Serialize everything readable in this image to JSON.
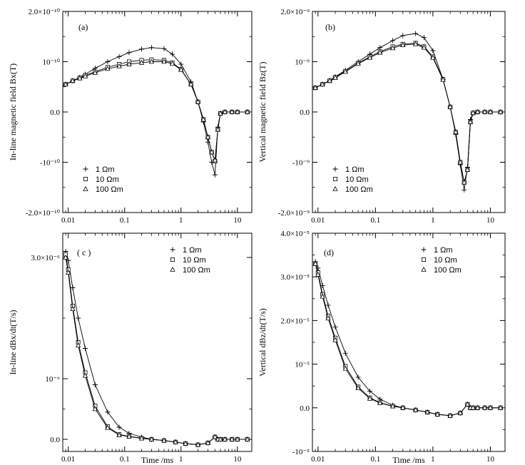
{
  "chart_data": [
    {
      "panel": "(a)",
      "type": "line",
      "x_scale": "log",
      "xlim": [
        0.008,
        18
      ],
      "ylim": [
        -2e-10,
        2e-10
      ],
      "xticks": [
        0.01,
        0.1,
        1,
        10
      ],
      "xtick_labels": [
        "0.01",
        "0.1",
        "1",
        "10"
      ],
      "yticks": [
        -2e-10,
        -1e-10,
        0,
        1e-10,
        2e-10
      ],
      "ytick_labels": [
        "-2.0×10⁻¹⁰",
        "-10⁻¹⁰",
        "0.0",
        "10⁻¹⁰",
        "2.0×10⁻¹⁰"
      ],
      "ylabel": "In-line magnetic field Bx(T)",
      "xlabel": "",
      "legend": [
        "1 Ωm",
        "10 Ωm",
        "100 Ωm"
      ],
      "legend_position": "lower-left",
      "x": [
        0.009,
        0.012,
        0.016,
        0.02,
        0.03,
        0.05,
        0.08,
        0.12,
        0.2,
        0.3,
        0.5,
        0.7,
        1.0,
        1.5,
        2.0,
        2.5,
        3.0,
        3.5,
        4.0,
        4.5,
        5.0,
        6.0,
        8.0,
        10.0,
        15.0
      ],
      "series": [
        {
          "name": "1 Ωm",
          "marker": "plus",
          "values": [
            5.5e-11,
            6.2e-11,
            6.9e-11,
            7.5e-11,
            8.7e-11,
            1e-10,
            1.1e-10,
            1.18e-10,
            1.25e-10,
            1.28e-10,
            1.26e-10,
            1.15e-10,
            9.5e-11,
            6e-11,
            2e-11,
            -2e-11,
            -6e-11,
            -1e-10,
            -1.25e-10,
            -3e-11,
            -2e-12,
            0,
            0,
            0,
            0
          ]
        },
        {
          "name": "10 Ωm",
          "marker": "square",
          "values": [
            5.5e-11,
            6.2e-11,
            6.8e-11,
            7.3e-11,
            8e-11,
            8.9e-11,
            9.5e-11,
            1e-10,
            1.03e-10,
            1.04e-10,
            1.03e-10,
            9.8e-11,
            8.5e-11,
            5.5e-11,
            2e-11,
            -1.5e-11,
            -5e-11,
            -8e-11,
            -9.8e-11,
            -3.5e-11,
            -3e-12,
            0,
            0,
            0,
            0
          ]
        },
        {
          "name": "100 Ωm",
          "marker": "triangle",
          "values": [
            5.5e-11,
            6.2e-11,
            6.7e-11,
            7.1e-11,
            7.8e-11,
            8.6e-11,
            9.1e-11,
            9.5e-11,
            9.8e-11,
            1e-10,
            1e-10,
            9.6e-11,
            8.4e-11,
            5.5e-11,
            2e-11,
            -1.5e-11,
            -5e-11,
            -8e-11,
            -9.6e-11,
            -3.5e-11,
            -3e-12,
            0,
            0,
            0,
            0
          ]
        }
      ]
    },
    {
      "panel": "(b)",
      "type": "line",
      "x_scale": "log",
      "xlim": [
        0.008,
        18
      ],
      "ylim": [
        -2e-09,
        2e-09
      ],
      "xticks": [
        0.01,
        0.1,
        1,
        10
      ],
      "xtick_labels": [
        "0.01",
        "0.1",
        "1",
        "10"
      ],
      "yticks": [
        -2e-09,
        -1e-09,
        0,
        1e-09,
        2e-09
      ],
      "ytick_labels": [
        "-2.0×10⁻⁹",
        "-10⁻⁹",
        "0.0",
        "10⁻⁹",
        "2.0×10⁻⁹"
      ],
      "ylabel": "Vertical magnetic field Bz(T)",
      "xlabel": "",
      "legend": [
        "1 Ωm",
        "10 Ωm",
        "100 Ωm"
      ],
      "legend_position": "lower-left",
      "x": [
        0.009,
        0.012,
        0.016,
        0.02,
        0.03,
        0.05,
        0.08,
        0.12,
        0.2,
        0.3,
        0.5,
        0.7,
        1.0,
        1.5,
        2.0,
        2.5,
        3.0,
        3.5,
        4.0,
        4.5,
        5.0,
        6.0,
        8.0,
        10.0,
        15.0
      ],
      "series": [
        {
          "name": "1 Ωm",
          "marker": "plus",
          "values": [
            4.8e-10,
            5.5e-10,
            6.3e-10,
            7e-10,
            8.3e-10,
            1e-09,
            1.15e-09,
            1.28e-09,
            1.42e-09,
            1.52e-09,
            1.56e-09,
            1.48e-09,
            1.22e-09,
            6.5e-10,
            1e-10,
            -4.5e-10,
            -1.05e-09,
            -1.55e-09,
            -1.1e-09,
            -1.5e-10,
            -2e-11,
            0,
            0,
            0,
            0
          ]
        },
        {
          "name": "10 Ωm",
          "marker": "square",
          "values": [
            4.8e-10,
            5.5e-10,
            6.2e-10,
            6.9e-10,
            8.1e-10,
            9.7e-10,
            1.1e-09,
            1.2e-09,
            1.3e-09,
            1.35e-09,
            1.37e-09,
            1.3e-09,
            1.1e-09,
            6.5e-10,
            1e-10,
            -4e-10,
            -1e-09,
            -1.4e-09,
            -1.15e-09,
            -2e-10,
            -2e-11,
            0,
            0,
            0,
            0
          ]
        },
        {
          "name": "100 Ωm",
          "marker": "triangle",
          "values": [
            4.8e-10,
            5.5e-10,
            6.2e-10,
            6.8e-10,
            8e-10,
            9.6e-10,
            1.08e-09,
            1.18e-09,
            1.27e-09,
            1.33e-09,
            1.35e-09,
            1.28e-09,
            1.08e-09,
            6.4e-10,
            1e-10,
            -4e-10,
            -1e-09,
            -1.4e-09,
            -1.15e-09,
            -2e-10,
            -2e-11,
            0,
            0,
            0,
            0
          ]
        }
      ]
    },
    {
      "panel": "( c )",
      "type": "line",
      "x_scale": "log",
      "xlim": [
        0.008,
        18
      ],
      "ylim": [
        -2e-07,
        3.4e-06
      ],
      "xticks": [
        0.01,
        0.1,
        1,
        10
      ],
      "xtick_labels": [
        "0.01",
        "0.1",
        "1",
        "10"
      ],
      "yticks": [
        0,
        1e-06,
        3e-06
      ],
      "ytick_labels": [
        "0.0",
        "10⁻⁶",
        "3.0×10⁻⁶"
      ],
      "ylabel": "In-line dBx/dt(T/s)",
      "xlabel": "Time /ms",
      "legend": [
        "1 Ωm",
        "10 Ωm",
        "100 Ωm"
      ],
      "legend_position": "top-right",
      "x": [
        0.009,
        0.01,
        0.012,
        0.015,
        0.02,
        0.03,
        0.05,
        0.08,
        0.12,
        0.2,
        0.3,
        0.5,
        0.8,
        1.2,
        2.0,
        3.0,
        4.0,
        4.5,
        5.0,
        6.0,
        8.0,
        10.0,
        15.0
      ],
      "series": [
        {
          "name": "1 Ωm",
          "marker": "plus",
          "values": [
            3.1e-06,
            2.95e-06,
            2.5e-06,
            2e-06,
            1.5e-06,
            9e-07,
            4.5e-07,
            2e-07,
            1e-07,
            3.5e-08,
            0,
            -2e-08,
            -4.5e-08,
            -7e-08,
            -9e-08,
            -6e-08,
            4e-08,
            0,
            0,
            0,
            0,
            0,
            0
          ]
        },
        {
          "name": "10 Ωm",
          "marker": "square",
          "values": [
            3.05e-06,
            2.8e-06,
            2.2e-06,
            1.6e-06,
            1.1e-06,
            5.5e-07,
            2.1e-07,
            8e-08,
            5e-08,
            2e-08,
            0,
            -2e-08,
            -4.5e-08,
            -7e-08,
            -9e-08,
            -6e-08,
            4e-08,
            0,
            0,
            0,
            0,
            0,
            0
          ]
        },
        {
          "name": "100 Ωm",
          "marker": "triangle",
          "values": [
            3e-06,
            2.75e-06,
            2.15e-06,
            1.55e-06,
            1.05e-06,
            5e-07,
            1.9e-07,
            7e-08,
            4.5e-08,
            1.5e-08,
            0,
            -2e-08,
            -4.5e-08,
            -7e-08,
            -9e-08,
            -6e-08,
            4e-08,
            0,
            0,
            0,
            0,
            0,
            0
          ]
        }
      ]
    },
    {
      "panel": "(d)",
      "type": "line",
      "x_scale": "log",
      "xlim": [
        0.008,
        18
      ],
      "ylim": [
        -1e-05,
        4e-05
      ],
      "xticks": [
        0.01,
        0.1,
        1,
        10
      ],
      "xtick_labels": [
        "0.01",
        "0.1",
        "1",
        "10"
      ],
      "yticks": [
        -1e-05,
        0,
        1e-05,
        2e-05,
        3e-05,
        4e-05
      ],
      "ytick_labels": [
        "-10⁻⁵",
        "0.0",
        "10⁻⁵",
        "2.0×10⁻⁵",
        "3.0×10⁻⁵",
        "4.0×10⁻⁵"
      ],
      "ylabel": "Vertical dBz/dt(T/s)",
      "xlabel": "Time /ms",
      "legend": [
        "1 Ωm",
        "10 Ωm",
        "100 Ωm"
      ],
      "legend_position": "top-right",
      "x": [
        0.009,
        0.01,
        0.012,
        0.015,
        0.02,
        0.03,
        0.05,
        0.08,
        0.12,
        0.2,
        0.3,
        0.5,
        0.8,
        1.2,
        2.0,
        3.0,
        4.0,
        4.5,
        5.0,
        6.0,
        8.0,
        10.0,
        15.0
      ],
      "series": [
        {
          "name": "1 Ωm",
          "marker": "plus",
          "values": [
            3.35e-05,
            3.2e-05,
            2.8e-05,
            2.35e-05,
            1.85e-05,
            1.25e-05,
            7e-06,
            3.8e-06,
            2e-06,
            6e-07,
            0,
            -5e-07,
            -1e-06,
            -1.5e-06,
            -1.8e-06,
            -1.2e-06,
            8e-07,
            0,
            0,
            0,
            0,
            0,
            0
          ]
        },
        {
          "name": "10 Ωm",
          "marker": "square",
          "values": [
            3.3e-05,
            3.1e-05,
            2.6e-05,
            2.1e-05,
            1.6e-05,
            9.5e-06,
            4.8e-06,
            2.3e-06,
            1.2e-06,
            4e-07,
            0,
            -5e-07,
            -1e-06,
            -1.5e-06,
            -1.8e-06,
            -1.2e-06,
            8e-07,
            0,
            0,
            0,
            0,
            0,
            0
          ]
        },
        {
          "name": "100 Ωm",
          "marker": "triangle",
          "values": [
            3.3e-05,
            3.05e-05,
            2.55e-05,
            2.05e-05,
            1.55e-05,
            9e-06,
            4.5e-06,
            2.1e-06,
            1.1e-06,
            3.5e-07,
            0,
            -5e-07,
            -1e-06,
            -1.5e-06,
            -1.8e-06,
            -1.2e-06,
            8e-07,
            0,
            0,
            0,
            0,
            0,
            0
          ]
        }
      ]
    }
  ]
}
